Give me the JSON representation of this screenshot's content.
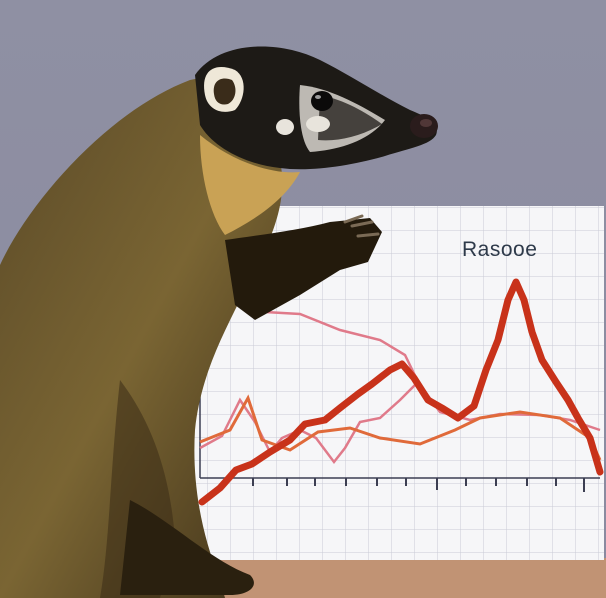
{
  "scene": {
    "subject": "coati-icon",
    "background_color": "#8b8c9f",
    "table_color": "#c19374"
  },
  "board": {
    "title": "Rasooe",
    "paper_color": "#f6f6f8",
    "grid_color": "#c9cbd6",
    "axis_color": "#3c3e52"
  },
  "lines": {
    "primary_color": "#c8321a",
    "secondary_color": "#e06a3a",
    "pink_color": "#e07a8a"
  }
}
